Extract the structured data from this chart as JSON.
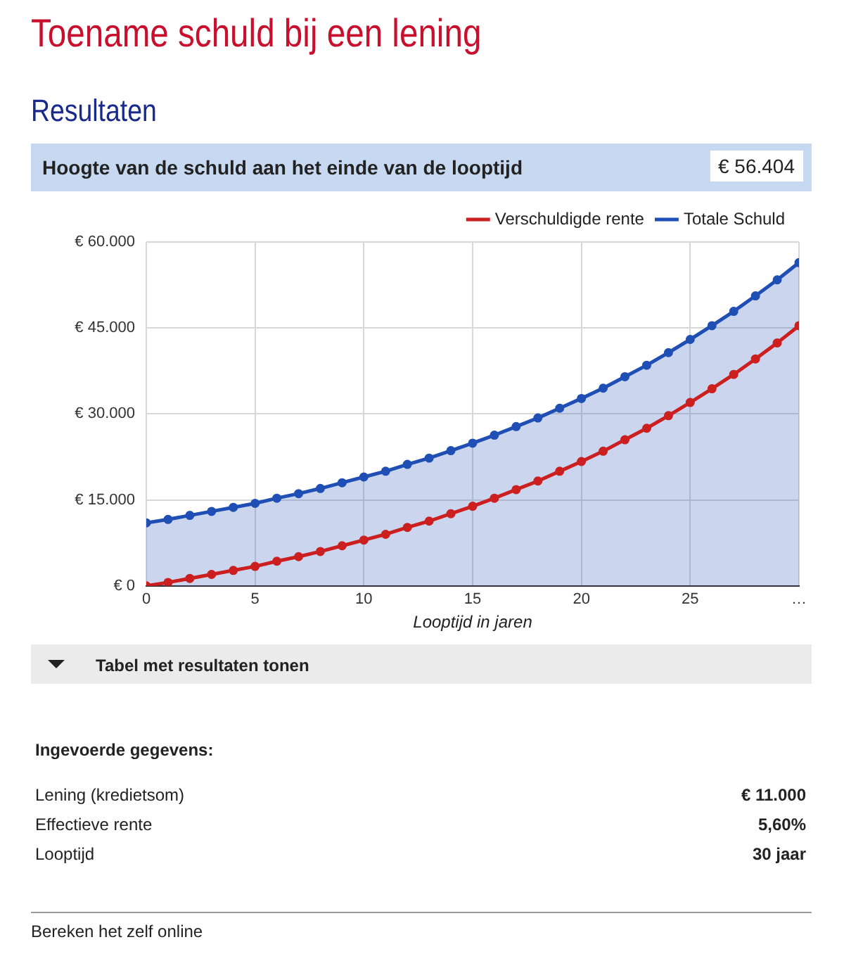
{
  "chart_data": {
    "type": "line",
    "title": "Toename schuld bij een lening",
    "subtitle": "Resultaten",
    "xlabel": "Looptijd in jaren",
    "x": [
      0,
      1,
      2,
      3,
      4,
      5,
      6,
      7,
      8,
      9,
      10,
      11,
      12,
      13,
      14,
      15,
      16,
      17,
      18,
      19,
      20,
      21,
      22,
      23,
      24,
      25,
      26,
      27,
      28,
      29,
      30
    ],
    "series": [
      {
        "name": "Verschuldigde rente",
        "type": "line",
        "color": "#cc1f1f",
        "values": [
          0,
          600,
          1300,
          2000,
          2700,
          3400,
          4300,
          5100,
          6000,
          7000,
          8000,
          9000,
          10200,
          11300,
          12600,
          13900,
          15300,
          16800,
          18300,
          20000,
          21700,
          23500,
          25500,
          27500,
          29700,
          32000,
          34400,
          36900,
          39600,
          42400,
          45400
        ]
      },
      {
        "name": "Totale Schuld",
        "type": "area",
        "color": "#1f4fb4",
        "values": [
          11000,
          11600,
          12300,
          13000,
          13700,
          14400,
          15300,
          16100,
          17000,
          18000,
          19000,
          20000,
          21200,
          22300,
          23600,
          24900,
          26300,
          27800,
          29300,
          31000,
          32700,
          34500,
          36500,
          38500,
          40700,
          43000,
          45400,
          47900,
          50600,
          53400,
          56400
        ]
      }
    ],
    "xlim": [
      0,
      30
    ],
    "xticks": [
      0,
      5,
      10,
      15,
      20,
      25,
      {
        "value": 30,
        "label": "…"
      }
    ],
    "ylim": [
      0,
      60000
    ],
    "yticks": [
      {
        "value": 0,
        "label": "€ 0"
      },
      {
        "value": 15000,
        "label": "€ 15.000"
      },
      {
        "value": 30000,
        "label": "€ 30.000"
      },
      {
        "value": 45000,
        "label": "€ 45.000"
      },
      {
        "value": 60000,
        "label": "€ 60.000"
      }
    ],
    "grid": true,
    "legend": "top right",
    "marker": "circle",
    "line_style": "solid",
    "annotations": [
      "Hoogte van de schuld aan het einde van de looptijd",
      "€ 56.404",
      "Tabel met resultaten tonen",
      "Ingevoerde gegevens:",
      "Lening (kredietsom)",
      "€ 11.000",
      "Effectieve rente",
      "5,60%",
      "Looptijd",
      "30 jaar",
      "Bereken het zelf online"
    ]
  }
}
